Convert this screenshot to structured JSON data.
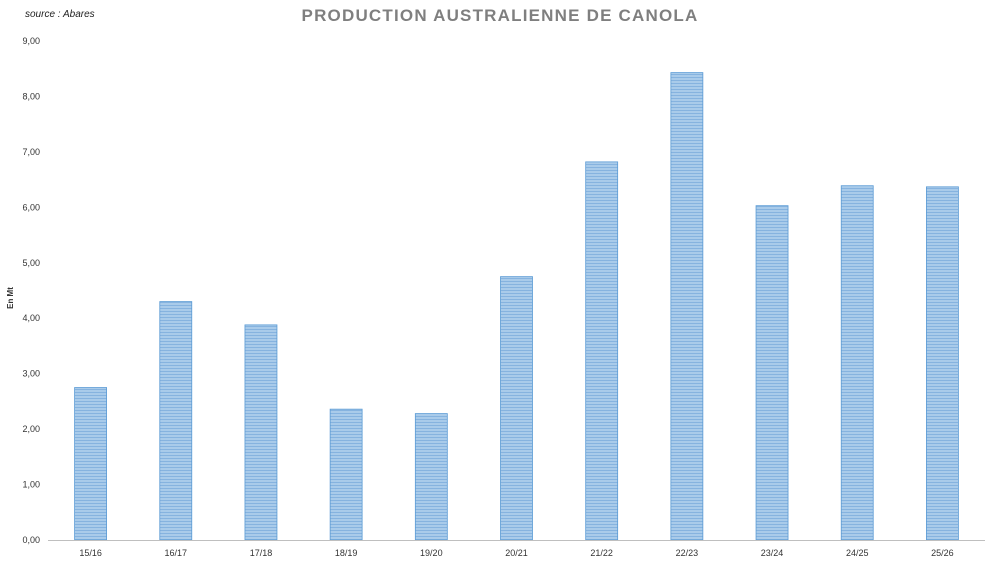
{
  "source_note": "source : Abares",
  "chart_data": {
    "type": "bar",
    "title": "PRODUCTION AUSTRALIENNE DE CANOLA",
    "ylabel": "En Mt",
    "xlabel": "",
    "categories": [
      "15/16",
      "16/17",
      "17/18",
      "18/19",
      "19/20",
      "20/21",
      "21/22",
      "22/23",
      "23/24",
      "24/25",
      "25/26"
    ],
    "values": [
      2.75,
      4.3,
      3.88,
      2.36,
      2.28,
      4.75,
      6.82,
      8.43,
      6.03,
      6.39,
      6.37
    ],
    "ylim": [
      0,
      9
    ],
    "yticks": [
      "0,00",
      "1,00",
      "2,00",
      "3,00",
      "4,00",
      "5,00",
      "6,00",
      "7,00",
      "8,00",
      "9,00"
    ],
    "grid": false,
    "bar_color": "#9dc3e6",
    "bar_stroke": "#5b9bd5"
  }
}
